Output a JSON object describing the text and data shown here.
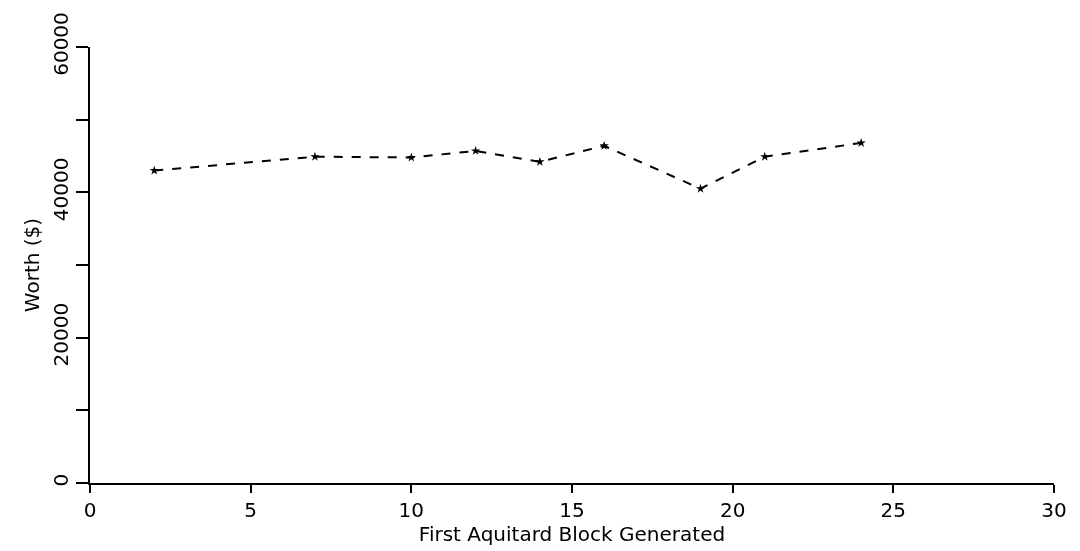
{
  "chart_data": {
    "type": "line",
    "xlabel": "First Aquitard Block Generated",
    "ylabel": "Worth ($)",
    "x": [
      2,
      7,
      10,
      12,
      14,
      16,
      19,
      21,
      24
    ],
    "series": [
      {
        "color": "#000000",
        "values": [
          43000,
          44900,
          44800,
          45700,
          44200,
          46400,
          40500,
          44900,
          46800
        ]
      }
    ],
    "xlim": [
      0,
      30
    ],
    "xticks": [
      0,
      5,
      10,
      15,
      20,
      25,
      30
    ],
    "ylim": [
      0,
      60000
    ],
    "yticks": [
      0,
      {
        "value": 10000,
        "label": null
      },
      20000,
      {
        "value": 30000,
        "label": null
      },
      40000,
      {
        "value": 50000,
        "label": null
      },
      60000
    ],
    "legend": false,
    "marker": "star",
    "line_style": "dashed"
  }
}
